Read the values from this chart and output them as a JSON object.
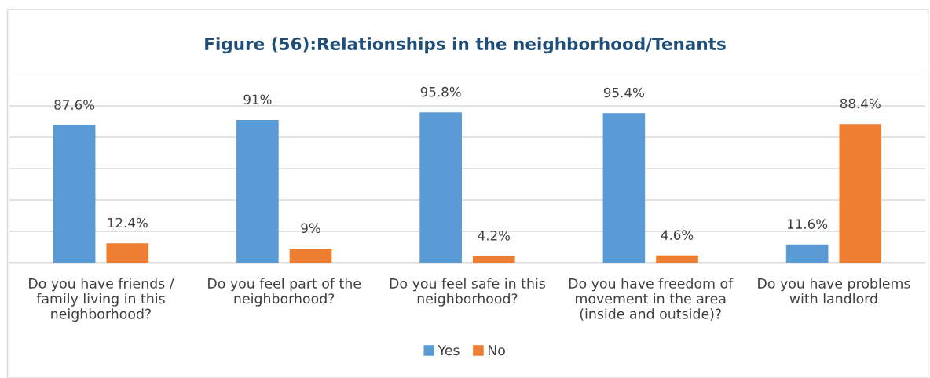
{
  "chart_data": {
    "type": "bar",
    "title": "Figure (56):Relationships in the neighborhood/Tenants",
    "categories": [
      "Do you have friends /\nfamily living in this\nneighborhood?",
      "Do you feel part of the\nneighborhood?",
      "Do you feel safe in this\nneighborhood?",
      "Do you have freedom of\nmovement in the area\n(inside and outside)?",
      "Do you have problems\nwith landlord"
    ],
    "series": [
      {
        "name": "Yes",
        "color": "#5b9bd5",
        "values": [
          87.6,
          91,
          95.8,
          95.4,
          11.6
        ],
        "value_labels": [
          "87.6%",
          "91%",
          "95.8%",
          "95.4%",
          "11.6%"
        ]
      },
      {
        "name": "No",
        "color": "#ed7d31",
        "values": [
          12.4,
          9,
          4.2,
          4.6,
          88.4
        ],
        "value_labels": [
          "12.4%",
          "9%",
          "4.2%",
          "4.6%",
          "88.4%"
        ]
      }
    ],
    "ylim": [
      0,
      120
    ],
    "yticks": [
      {
        "value": 0,
        "label": null
      },
      {
        "value": 20,
        "label": null
      },
      {
        "value": 40,
        "label": null
      },
      {
        "value": 60,
        "label": null
      },
      {
        "value": 80,
        "label": null
      },
      {
        "value": 100,
        "label": null
      },
      {
        "value": 120,
        "label": null
      }
    ],
    "tick_labels": "x",
    "grid": "y",
    "legend": "bottom"
  }
}
